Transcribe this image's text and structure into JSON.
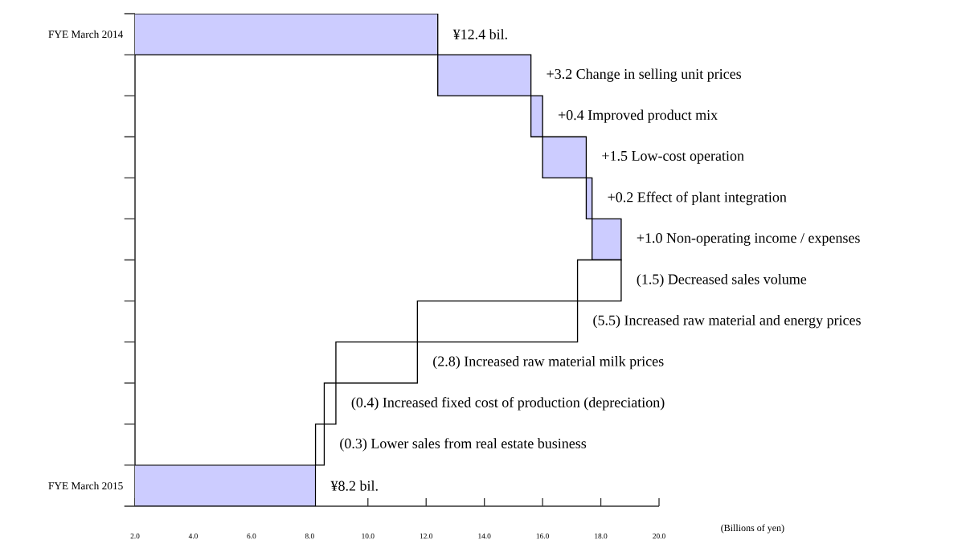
{
  "chart_data": {
    "type": "bar",
    "orientation": "horizontal",
    "categories": [
      "FYE March 2014",
      null,
      null,
      null,
      null,
      null,
      null,
      null,
      null,
      null,
      null,
      "FYE March 2015"
    ],
    "values": [
      12.4,
      3.2,
      0.4,
      1.5,
      0.2,
      1.0,
      -1.5,
      -5.5,
      -2.8,
      -0.4,
      -0.3,
      8.2
    ],
    "base": [
      0,
      12.4,
      15.6,
      16.0,
      17.5,
      17.7,
      18.7,
      17.2,
      11.7,
      8.9,
      8.5,
      0
    ],
    "colors": [
      "#ccccff",
      "#ccccff",
      "#ccccff",
      "#ccccff",
      "#ccccff",
      "#ccccff",
      "#ffffff",
      "#ffffff",
      "#ffffff",
      "#ffffff",
      "#ffffff",
      "#ccccff"
    ],
    "value_labels": [
      "¥12.4 bil.",
      "+3.2 Change in selling unit prices",
      "+0.4 Improved product mix",
      "+1.5 Low-cost operation",
      "+0.2 Effect of plant integration",
      "+1.0 Non-operating income / expenses",
      "(1.5) Decreased sales volume",
      "(5.5) Increased raw material and energy prices",
      "(2.8) Increased raw material milk prices",
      "(0.4) Increased fixed cost of production (depreciation)",
      "(0.3) Lower sales from real estate business",
      "¥8.2 bil."
    ],
    "xlim": [
      2,
      20
    ],
    "xticks": [
      {
        "value": 2,
        "label": "2.0"
      },
      {
        "value": 4,
        "label": "4.0"
      },
      {
        "value": 6,
        "label": "6.0"
      },
      {
        "value": 8,
        "label": "8.0"
      },
      {
        "value": 10,
        "label": "10.0"
      },
      {
        "value": 12,
        "label": "12.0"
      },
      {
        "value": 14,
        "label": "14.0"
      },
      {
        "value": 16,
        "label": "16.0"
      },
      {
        "value": 18,
        "label": "18.0"
      },
      {
        "value": 20,
        "label": "20.0"
      }
    ],
    "annotations": [
      "(Billions of yen)"
    ]
  }
}
